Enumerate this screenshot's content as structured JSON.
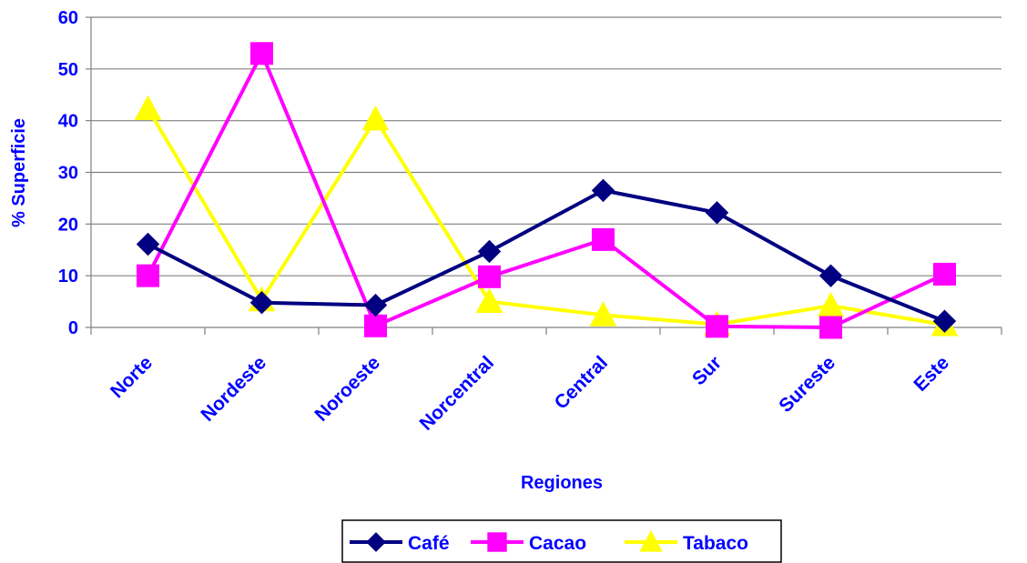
{
  "chart_data": {
    "type": "line",
    "title": "",
    "xlabel": "Regiones",
    "ylabel": "% Superficie",
    "ylim": [
      0,
      60
    ],
    "yticks": [
      0,
      10,
      20,
      30,
      40,
      50,
      60
    ],
    "grid": true,
    "legend_position": "bottom",
    "categories": [
      "Norte",
      "Nordeste",
      "Noroeste",
      "Norcentral",
      "Central",
      "Sur",
      "Sureste",
      "Este"
    ],
    "series": [
      {
        "name": "Café",
        "color": "#000080",
        "marker": "diamond",
        "values": [
          16.1,
          4.8,
          4.3,
          14.7,
          26.5,
          22.2,
          10.0,
          1.2
        ]
      },
      {
        "name": "Cacao",
        "color": "#ff00ff",
        "marker": "square",
        "values": [
          10.0,
          53.0,
          0.3,
          9.8,
          17.0,
          0.2,
          0.0,
          10.3
        ]
      },
      {
        "name": "Tabaco",
        "color": "#ffff00",
        "marker": "triangle",
        "values": [
          42.3,
          5.3,
          40.3,
          5.0,
          2.4,
          0.6,
          4.2,
          0.5
        ]
      }
    ]
  }
}
